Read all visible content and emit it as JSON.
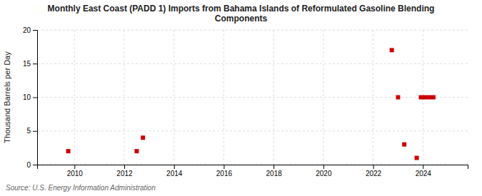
{
  "chart_data": {
    "type": "scatter",
    "title": "Monthly East Coast (PADD 1) Imports from Bahama Islands of Reformulated Gasoline Blending\nComponents",
    "y_label": "Thousand Barrels per Day",
    "annotations": [
      "Source: U.S. Energy Information Administration"
    ],
    "x": [
      2009.75,
      2012.5,
      2012.75,
      2022.75,
      2023.0,
      2023.25,
      2023.75,
      2023.92,
      2024.08,
      2024.25,
      2024.42
    ],
    "values": [
      2.0,
      2.0,
      4.0,
      17.0,
      10.0,
      3.0,
      1.0,
      10.0,
      10.0,
      10.0,
      10.0
    ],
    "color": "#cc0000",
    "marker": "square",
    "xlim": [
      2008.5,
      2025.8
    ],
    "ylim": [
      0,
      20
    ],
    "xticks": [
      2010,
      2012,
      2014,
      2016,
      2018,
      2020,
      2022,
      2024
    ],
    "yticks": [
      0,
      5,
      10,
      15,
      20
    ],
    "grid": true
  }
}
